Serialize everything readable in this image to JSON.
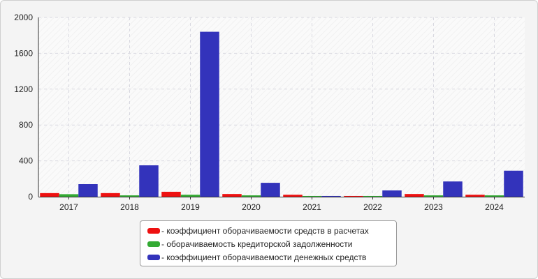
{
  "chart_data": {
    "type": "bar",
    "categories": [
      "2017",
      "2018",
      "2019",
      "2020",
      "2021",
      "2022",
      "2023",
      "2024"
    ],
    "series": [
      {
        "name": "- коэффициент оборачиваемости средств в расчетах",
        "color": "#ee1111",
        "values": [
          40,
          40,
          55,
          30,
          22,
          8,
          30,
          22
        ]
      },
      {
        "name": "- оборачиваемость кредиторской задолженности",
        "color": "#33aa33",
        "values": [
          28,
          15,
          22,
          15,
          8,
          8,
          15,
          15
        ]
      },
      {
        "name": "- коэффициент оборачиваемости денежных средств",
        "color": "#3333bb",
        "values": [
          140,
          350,
          1840,
          155,
          8,
          70,
          170,
          290
        ]
      }
    ],
    "ylim": [
      0,
      2000
    ],
    "yticks": [
      "0",
      "400",
      "800",
      "1200",
      "1600",
      "2000"
    ],
    "grid": true,
    "legend_position": "bottom"
  }
}
